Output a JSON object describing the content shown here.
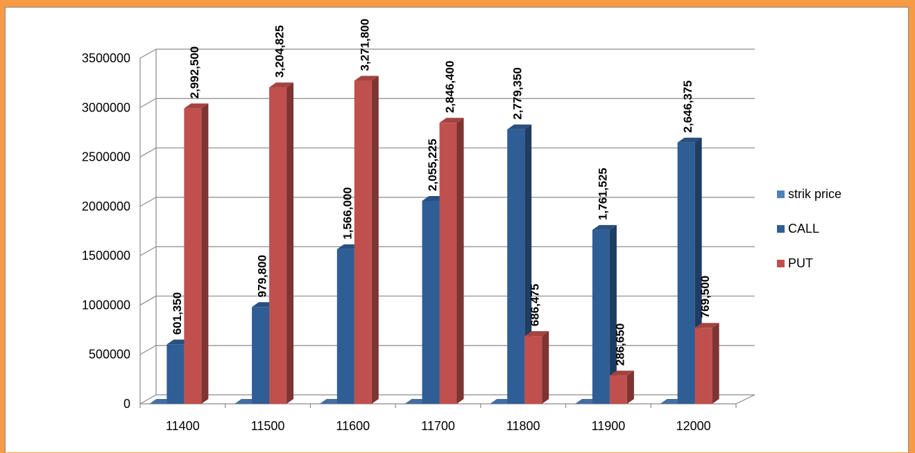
{
  "chart_data": {
    "type": "bar",
    "title": "",
    "xlabel": "",
    "ylabel": "",
    "ylim": [
      0,
      3500000
    ],
    "yticks": [
      0,
      500000,
      1000000,
      1500000,
      2000000,
      2500000,
      3000000,
      3500000
    ],
    "ytick_labels": [
      "0",
      "500000",
      "1000000",
      "1500000",
      "2000000",
      "2500000",
      "3000000",
      "3500000"
    ],
    "grid": true,
    "legend_position": "right",
    "categories": [
      "11400",
      "11500",
      "11600",
      "11700",
      "11800",
      "11900",
      "12000"
    ],
    "series": [
      {
        "name": "strik price",
        "color": "#4f81bd",
        "values": [
          0,
          0,
          0,
          0,
          0,
          0,
          0
        ],
        "labels": [
          "",
          "",
          "",
          "",
          "",
          "",
          ""
        ]
      },
      {
        "name": "CALL",
        "color": "#2f5e96",
        "values": [
          601350,
          979800,
          1566000,
          2055225,
          2779350,
          1761525,
          2646375
        ],
        "labels": [
          "601,350",
          "979,800",
          "1,566,000",
          "2,055,225",
          "2,779,350",
          "1,761,525",
          "2,646,375"
        ]
      },
      {
        "name": "PUT",
        "color": "#c0504d",
        "values": [
          2992500,
          3204825,
          3271800,
          2846400,
          686475,
          286650,
          769500
        ],
        "labels": [
          "2,992,500",
          "3,204,825",
          "3,271,800",
          "2,846,400",
          "686,475",
          "286,650",
          "769,500"
        ]
      }
    ]
  }
}
